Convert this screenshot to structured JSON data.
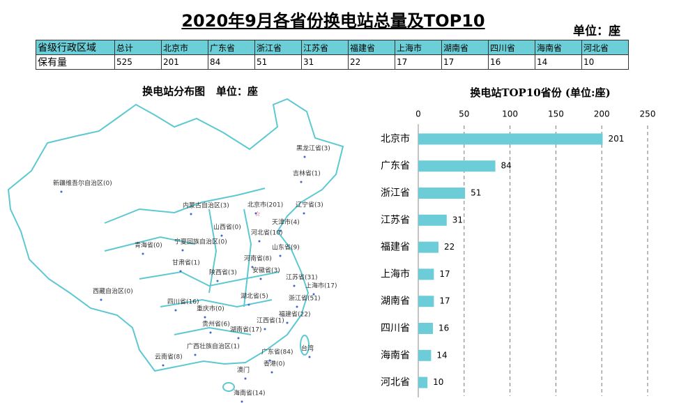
{
  "header": {
    "title": "2020年9月各省份换电站总量及TOP10",
    "unit": "单位：座"
  },
  "table": {
    "header": [
      "省级行政区域",
      "总计",
      "北京市",
      "广东省",
      "浙江省",
      "江苏省",
      "福建省",
      "上海市",
      "湖南省",
      "四川省",
      "海南省",
      "河北省"
    ],
    "rows": [
      [
        "保有量",
        525,
        201,
        84,
        51,
        31,
        22,
        17,
        17,
        16,
        14,
        10
      ]
    ]
  },
  "map": {
    "title": "换电站分布图   单位：座",
    "labels": [
      "黑龙江省(3)",
      "吉林省(1)",
      "辽宁省(3)",
      "北京市(201)",
      "天津市(4)",
      "内蒙古自治区(3)",
      "新疆维吾尔自治区(0)",
      "山西省(0)",
      "河北省(10)",
      "宁夏回族自治区(0)",
      "青海省(0)",
      "山东省(9)",
      "甘肃省(1)",
      "河南省(8)",
      "陕西省(3)",
      "安徽省(3)",
      "江苏省(31)",
      "上海市(17)",
      "西藏自治区(0)",
      "湖北省(5)",
      "浙江省(51)",
      "四川省(16)",
      "重庆市(0)",
      "福建省(22)",
      "贵州省(6)",
      "江西省(1)",
      "湖南省(17)",
      "广西壮族自治区(1)",
      "云南省(8)",
      "广东省(84)",
      "台湾",
      "香港(0)",
      "澳门",
      "海南省(14)"
    ]
  },
  "chart_data": {
    "type": "bar",
    "orientation": "horizontal",
    "title": "换电站TOP10省份 (单位:座)",
    "categories": [
      "北京市",
      "广东省",
      "浙江省",
      "江苏省",
      "福建省",
      "上海市",
      "湖南省",
      "四川省",
      "海南省",
      "河北省"
    ],
    "values": [
      201,
      84,
      51,
      31,
      22,
      17,
      17,
      16,
      14,
      10
    ],
    "color": "#6ccdd8",
    "xlim": [
      0,
      250
    ],
    "xticks": [
      0,
      50,
      100,
      150,
      200,
      250
    ],
    "grid": true
  }
}
